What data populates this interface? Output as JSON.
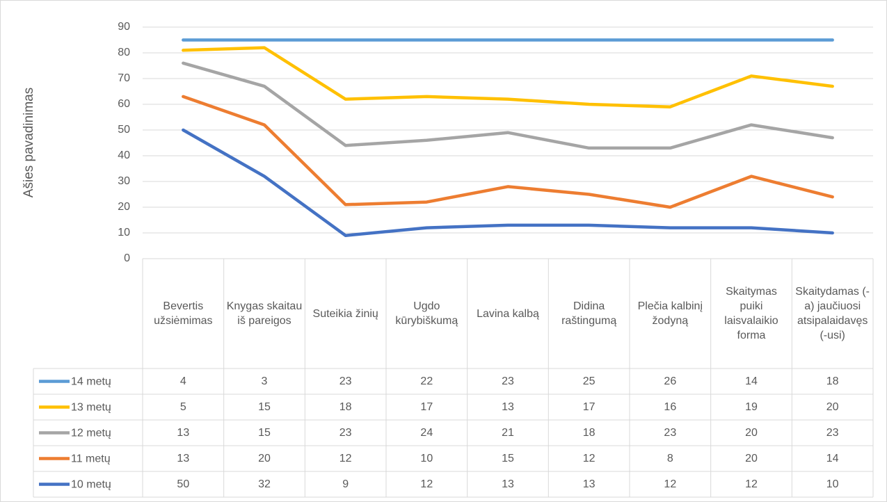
{
  "chart_data": {
    "type": "stacked_line",
    "y_axis_label": "Ašies pavadinimas",
    "categories": [
      "Bevertis užsiėmimas",
      "Knygas skaitau iš pareigos",
      "Suteikia žinių",
      "Ugdo kūrybiškumą",
      "Lavina kalbą",
      "Didina raštingumą",
      "Plečia kalbinį žodyną",
      "Skaitymas puiki laisvalaikio forma",
      "Skaitydamas (-a) jaučiuosi atsipalaidavęs (-usi)"
    ],
    "series": [
      {
        "name": "14 metų",
        "color": "#5b9bd5",
        "values": [
          4,
          3,
          23,
          22,
          23,
          25,
          26,
          14,
          18
        ]
      },
      {
        "name": "13 metų",
        "color": "#ffc000",
        "values": [
          5,
          15,
          18,
          17,
          13,
          17,
          16,
          19,
          20
        ]
      },
      {
        "name": "12 metų",
        "color": "#a5a5a5",
        "values": [
          13,
          15,
          23,
          24,
          21,
          18,
          23,
          20,
          23
        ]
      },
      {
        "name": "11 metų",
        "color": "#ed7d31",
        "values": [
          13,
          20,
          12,
          10,
          15,
          12,
          8,
          20,
          14
        ]
      },
      {
        "name": "10 metų",
        "color": "#4472c4",
        "values": [
          50,
          32,
          9,
          12,
          13,
          13,
          12,
          12,
          10
        ]
      }
    ],
    "ylim": [
      0,
      90
    ],
    "yticks": [
      0,
      10,
      20,
      30,
      40,
      50,
      60,
      70,
      80,
      90
    ],
    "grid": true,
    "data_table": true
  }
}
